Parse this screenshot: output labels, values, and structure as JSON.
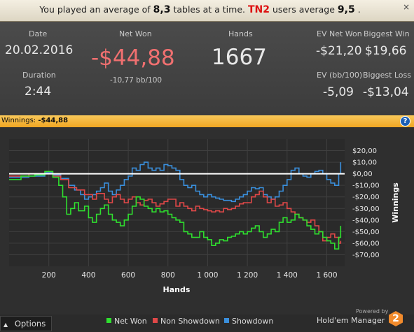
{
  "banner": {
    "prefix": "You played an average of",
    "avg_tables": "8,3",
    "mid": "tables at a time.",
    "site": "TN2",
    "suffix": "users average",
    "site_avg": "9,5",
    "end": ".",
    "close": "×"
  },
  "stats": {
    "date_label": "Date",
    "date_value": "20.02.2016",
    "duration_label": "Duration",
    "duration_value": "2:44",
    "netwon_label": "Net Won",
    "netwon_value": "-$44,88",
    "netwon_sub": "-10,77 bb/100",
    "hands_label": "Hands",
    "hands_value": "1667",
    "ev_net_won_label": "EV Net Won",
    "ev_net_won_value": "-$21,20",
    "biggest_win_label": "Biggest Win",
    "biggest_win_value": "$19,66",
    "ev_bb_label": "EV (bb/100)",
    "ev_bb_value": "-5,09",
    "biggest_loss_label": "Biggest Loss",
    "biggest_loss_value": "-$13,04"
  },
  "winnings_bar": {
    "label": "Winnings:",
    "value": "-$44,88",
    "help": "?"
  },
  "colors": {
    "net_won": "#2fe02f",
    "non_showdown": "#e04848",
    "showdown": "#3a8fdc",
    "accent": "#f0a623",
    "netwon_text": "#f07070"
  },
  "chart_data": {
    "type": "line",
    "xlabel": "Hands",
    "ylabel": "Winnings",
    "xlim": [
      0,
      1690
    ],
    "ylim": [
      -80,
      30
    ],
    "x_ticks": [
      200,
      400,
      600,
      800,
      1000,
      1200,
      1400,
      1600
    ],
    "x_tick_labels": [
      "200",
      "400",
      "600",
      "800",
      "1 000",
      "1 200",
      "1 400",
      "1 600"
    ],
    "y_ticks": [
      20,
      10,
      0,
      -10,
      -20,
      -30,
      -40,
      -50,
      -60,
      -70
    ],
    "y_tick_labels": [
      "$20,00",
      "$10,00",
      "$0,00",
      "-$10,00",
      "-$20,00",
      "-$30,00",
      "-$40,00",
      "-$50,00",
      "-$60,00",
      "-$70,00"
    ],
    "grid": true,
    "zero_line": true,
    "series": [
      {
        "name": "Net Won",
        "points": [
          [
            0,
            -5
          ],
          [
            60,
            -2
          ],
          [
            130,
            -1
          ],
          [
            180,
            2
          ],
          [
            220,
            -3
          ],
          [
            250,
            -10
          ],
          [
            270,
            -20
          ],
          [
            290,
            -35
          ],
          [
            310,
            -30
          ],
          [
            330,
            -25
          ],
          [
            350,
            -32
          ],
          [
            380,
            -28
          ],
          [
            400,
            -38
          ],
          [
            420,
            -42
          ],
          [
            440,
            -35
          ],
          [
            460,
            -30
          ],
          [
            480,
            -27
          ],
          [
            500,
            -35
          ],
          [
            520,
            -40
          ],
          [
            540,
            -42
          ],
          [
            560,
            -45
          ],
          [
            580,
            -40
          ],
          [
            600,
            -35
          ],
          [
            620,
            -28
          ],
          [
            640,
            -20
          ],
          [
            660,
            -22
          ],
          [
            680,
            -28
          ],
          [
            700,
            -30
          ],
          [
            720,
            -33
          ],
          [
            740,
            -30
          ],
          [
            760,
            -33
          ],
          [
            780,
            -32
          ],
          [
            800,
            -35
          ],
          [
            820,
            -38
          ],
          [
            840,
            -40
          ],
          [
            860,
            -42
          ],
          [
            880,
            -50
          ],
          [
            900,
            -52
          ],
          [
            920,
            -55
          ],
          [
            940,
            -55
          ],
          [
            960,
            -50
          ],
          [
            980,
            -55
          ],
          [
            1000,
            -57
          ],
          [
            1020,
            -62
          ],
          [
            1040,
            -60
          ],
          [
            1060,
            -57
          ],
          [
            1080,
            -58
          ],
          [
            1100,
            -55
          ],
          [
            1120,
            -54
          ],
          [
            1140,
            -52
          ],
          [
            1160,
            -50
          ],
          [
            1180,
            -52
          ],
          [
            1200,
            -50
          ],
          [
            1220,
            -47
          ],
          [
            1240,
            -45
          ],
          [
            1260,
            -50
          ],
          [
            1280,
            -55
          ],
          [
            1300,
            -52
          ],
          [
            1320,
            -48
          ],
          [
            1340,
            -50
          ],
          [
            1360,
            -42
          ],
          [
            1380,
            -38
          ],
          [
            1400,
            -42
          ],
          [
            1420,
            -40
          ],
          [
            1440,
            -35
          ],
          [
            1460,
            -38
          ],
          [
            1480,
            -40
          ],
          [
            1500,
            -45
          ],
          [
            1520,
            -48
          ],
          [
            1540,
            -52
          ],
          [
            1560,
            -50
          ],
          [
            1580,
            -55
          ],
          [
            1600,
            -58
          ],
          [
            1620,
            -60
          ],
          [
            1640,
            -65
          ],
          [
            1660,
            -55
          ],
          [
            1670,
            -45
          ]
        ]
      },
      {
        "name": "Non Showdown",
        "points": [
          [
            0,
            -2
          ],
          [
            100,
            0
          ],
          [
            180,
            0
          ],
          [
            220,
            -2
          ],
          [
            260,
            -5
          ],
          [
            300,
            -12
          ],
          [
            340,
            -14
          ],
          [
            380,
            -18
          ],
          [
            420,
            -22
          ],
          [
            440,
            -17
          ],
          [
            460,
            -17
          ],
          [
            480,
            -22
          ],
          [
            500,
            -25
          ],
          [
            520,
            -20
          ],
          [
            540,
            -18
          ],
          [
            560,
            -22
          ],
          [
            580,
            -25
          ],
          [
            600,
            -22
          ],
          [
            620,
            -20
          ],
          [
            640,
            -25
          ],
          [
            660,
            -27
          ],
          [
            680,
            -23
          ],
          [
            700,
            -22
          ],
          [
            720,
            -25
          ],
          [
            740,
            -28
          ],
          [
            760,
            -26
          ],
          [
            780,
            -24
          ],
          [
            800,
            -22
          ],
          [
            820,
            -22
          ],
          [
            840,
            -28
          ],
          [
            860,
            -25
          ],
          [
            880,
            -28
          ],
          [
            900,
            -30
          ],
          [
            920,
            -32
          ],
          [
            940,
            -28
          ],
          [
            960,
            -30
          ],
          [
            980,
            -31
          ],
          [
            1000,
            -32
          ],
          [
            1020,
            -33
          ],
          [
            1040,
            -32
          ],
          [
            1060,
            -33
          ],
          [
            1080,
            -30
          ],
          [
            1100,
            -31
          ],
          [
            1120,
            -30
          ],
          [
            1140,
            -28
          ],
          [
            1160,
            -26
          ],
          [
            1180,
            -25
          ],
          [
            1200,
            -25
          ],
          [
            1220,
            -20
          ],
          [
            1240,
            -18
          ],
          [
            1260,
            -15
          ],
          [
            1280,
            -20
          ],
          [
            1300,
            -25
          ],
          [
            1320,
            -22
          ],
          [
            1340,
            -28
          ],
          [
            1360,
            -27
          ],
          [
            1380,
            -25
          ],
          [
            1400,
            -30
          ],
          [
            1420,
            -33
          ],
          [
            1440,
            -35
          ],
          [
            1460,
            -38
          ],
          [
            1480,
            -40
          ],
          [
            1500,
            -42
          ],
          [
            1520,
            -40
          ],
          [
            1540,
            -45
          ],
          [
            1560,
            -50
          ],
          [
            1580,
            -58
          ],
          [
            1600,
            -55
          ],
          [
            1620,
            -52
          ],
          [
            1640,
            -55
          ],
          [
            1660,
            -60
          ],
          [
            1670,
            -58
          ]
        ]
      },
      {
        "name": "Showdown",
        "points": [
          [
            0,
            -3
          ],
          [
            100,
            -2
          ],
          [
            180,
            1
          ],
          [
            220,
            -1
          ],
          [
            260,
            -4
          ],
          [
            300,
            -10
          ],
          [
            330,
            -14
          ],
          [
            360,
            -18
          ],
          [
            380,
            -22
          ],
          [
            400,
            -20
          ],
          [
            420,
            -18
          ],
          [
            440,
            -15
          ],
          [
            460,
            -12
          ],
          [
            480,
            -8
          ],
          [
            500,
            -15
          ],
          [
            520,
            -18
          ],
          [
            540,
            -14
          ],
          [
            560,
            -10
          ],
          [
            580,
            -5
          ],
          [
            600,
            -2
          ],
          [
            620,
            5
          ],
          [
            640,
            3
          ],
          [
            660,
            8
          ],
          [
            680,
            10
          ],
          [
            700,
            5
          ],
          [
            720,
            3
          ],
          [
            740,
            5
          ],
          [
            760,
            3
          ],
          [
            780,
            8
          ],
          [
            800,
            7
          ],
          [
            820,
            5
          ],
          [
            840,
            3
          ],
          [
            860,
            -5
          ],
          [
            880,
            -10
          ],
          [
            900,
            -12
          ],
          [
            920,
            -10
          ],
          [
            940,
            -15
          ],
          [
            960,
            -18
          ],
          [
            980,
            -20
          ],
          [
            1000,
            -18
          ],
          [
            1020,
            -20
          ],
          [
            1040,
            -21
          ],
          [
            1060,
            -22
          ],
          [
            1080,
            -23
          ],
          [
            1100,
            -23
          ],
          [
            1120,
            -24
          ],
          [
            1140,
            -22
          ],
          [
            1160,
            -20
          ],
          [
            1180,
            -18
          ],
          [
            1200,
            -15
          ],
          [
            1220,
            -12
          ],
          [
            1240,
            -13
          ],
          [
            1260,
            -12
          ],
          [
            1280,
            -18
          ],
          [
            1300,
            -20
          ],
          [
            1320,
            -22
          ],
          [
            1340,
            -20
          ],
          [
            1360,
            -15
          ],
          [
            1380,
            -10
          ],
          [
            1400,
            -5
          ],
          [
            1420,
            3
          ],
          [
            1440,
            5
          ],
          [
            1460,
            0
          ],
          [
            1480,
            -2
          ],
          [
            1500,
            -3
          ],
          [
            1520,
            0
          ],
          [
            1540,
            2
          ],
          [
            1560,
            3
          ],
          [
            1580,
            0
          ],
          [
            1600,
            -5
          ],
          [
            1620,
            -8
          ],
          [
            1640,
            -10
          ],
          [
            1660,
            0
          ],
          [
            1670,
            10
          ]
        ]
      }
    ]
  },
  "footer": {
    "options_label": "Options",
    "options_arrow": "▲",
    "legend": [
      {
        "name": "Net Won",
        "color": "#2fe02f"
      },
      {
        "name": "Non Showdown",
        "color": "#e04848"
      },
      {
        "name": "Showdown",
        "color": "#3a8fdc"
      }
    ],
    "brand_powered": "Powered by",
    "brand_name": "Hold'em Manager",
    "brand_badge": "2"
  }
}
